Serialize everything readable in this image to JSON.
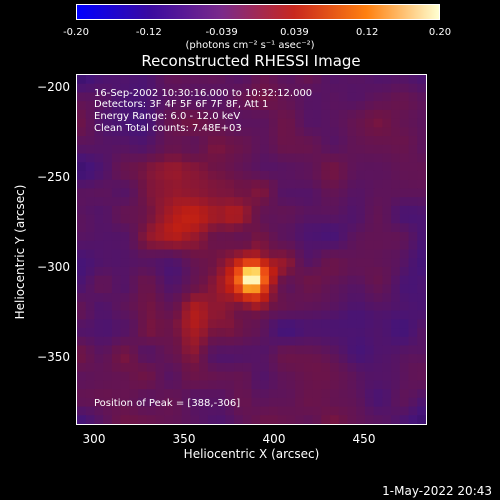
{
  "colorbar": {
    "ticks": [
      "-0.20",
      "-0.12",
      "-0.039",
      "0.039",
      "0.12",
      "0.20"
    ],
    "units": "(photons cm⁻² s⁻¹ asec⁻²)",
    "colors": [
      "#0000ff",
      "#3a0aa0",
      "#7a2a8a",
      "#c8281e",
      "#ff8010",
      "#ffffd0"
    ]
  },
  "annotations": {
    "time": "16-Sep-2002 10:30:16.000 to 10:32:12.000",
    "detectors": "Detectors: 3F 4F 5F 6F 7F 8F, Att 1",
    "energy": "Energy Range: 6.0 - 12.0 keV",
    "clean": "Clean    Total counts: 7.48E+03",
    "peak": "Position of Peak = [388,-306]"
  },
  "footer": {
    "timestamp": "1-May-2022 20:43"
  },
  "chart_data": {
    "type": "heatmap",
    "title": "Reconstructed RHESSI Image",
    "xlabel": "Heliocentric X (arcsec)",
    "ylabel": "Heliocentric Y (arcsec)",
    "xlim": [
      290,
      485
    ],
    "ylim": [
      -387,
      -192
    ],
    "x_ticks": [
      300,
      350,
      400,
      450
    ],
    "y_ticks": [
      -200,
      -250,
      -300,
      -350
    ],
    "peak": {
      "x": 388,
      "y": -306
    },
    "clim": [
      -0.2,
      0.2
    ]
  }
}
